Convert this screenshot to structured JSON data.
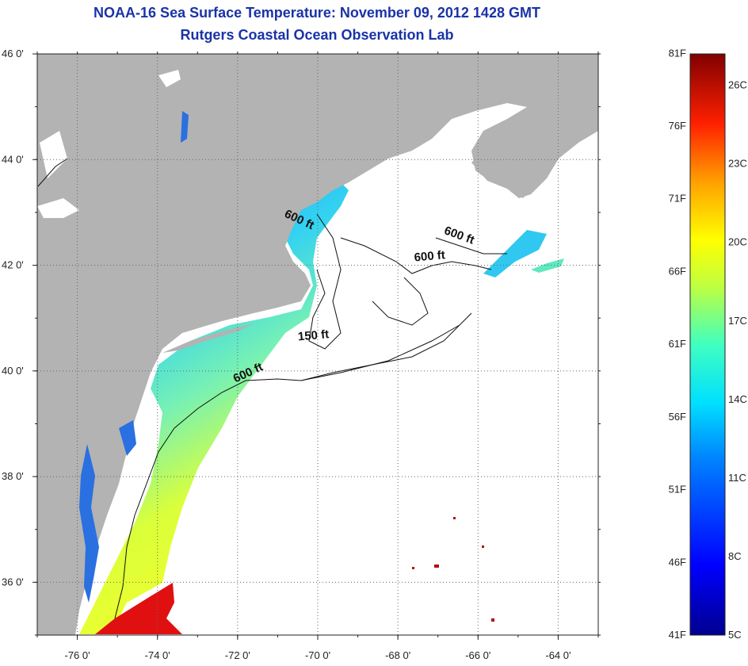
{
  "header": {
    "title": "NOAA-16 Sea Surface Temperature:  November 09, 2012 1428 GMT",
    "subtitle": "Rutgers Coastal Ocean Observation Lab"
  },
  "map": {
    "lon_range": [
      -77,
      -63
    ],
    "lat_range": [
      35,
      46
    ],
    "lon_ticks": [
      {
        "value": -76,
        "label": "-76 0'"
      },
      {
        "value": -74,
        "label": "-74 0'"
      },
      {
        "value": -72,
        "label": "-72 0'"
      },
      {
        "value": -70,
        "label": "-70 0'"
      },
      {
        "value": -68,
        "label": "-68 0'"
      },
      {
        "value": -66,
        "label": "-66 0'"
      },
      {
        "value": -64,
        "label": "-64 0'"
      }
    ],
    "lat_ticks": [
      {
        "value": 46,
        "label": "46 0'"
      },
      {
        "value": 44,
        "label": "44 0'"
      },
      {
        "value": 42,
        "label": "42 0'"
      },
      {
        "value": 40,
        "label": "40 0'"
      },
      {
        "value": 38,
        "label": "38 0'"
      },
      {
        "value": 36,
        "label": "36 0'"
      }
    ],
    "depth_labels": [
      {
        "text": "600 ft",
        "lon": -70.5,
        "lat": 42.8
      },
      {
        "text": "600 ft",
        "lon": -66.5,
        "lat": 42.5
      },
      {
        "text": "600 ft",
        "lon": -67.2,
        "lat": 42.1
      },
      {
        "text": "150 ft",
        "lon": -70.1,
        "lat": 40.6
      },
      {
        "text": "600 ft",
        "lon": -71.7,
        "lat": 39.9
      }
    ],
    "colors": {
      "land": "#b3b3b3",
      "ocean_no_data": "#ffffff",
      "grid": "#555555"
    }
  },
  "colorbar": {
    "fahrenheit_labels": [
      "81F",
      "76F",
      "71F",
      "66F",
      "61F",
      "56F",
      "51F",
      "46F",
      "41F"
    ],
    "celsius_labels": [
      "26C",
      "23C",
      "20C",
      "17C",
      "14C",
      "11C",
      "8C",
      "5C"
    ],
    "range_celsius": [
      5,
      27.2
    ]
  }
}
